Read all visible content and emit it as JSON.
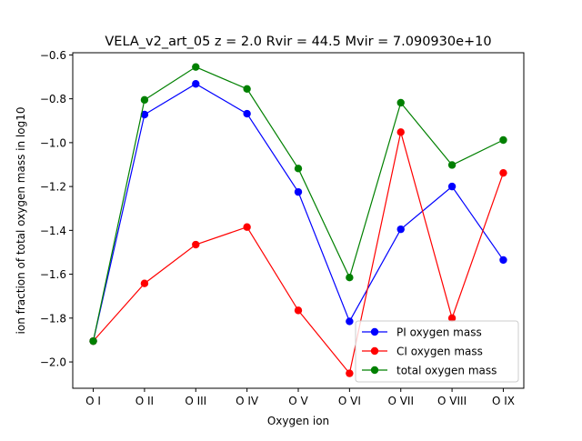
{
  "chart_data": {
    "type": "line",
    "title": "VELA_v2_art_05 z = 2.0 Rvir = 44.5 Mvir = 7.090930e+10",
    "xlabel": "Oxygen ion",
    "ylabel": "ion fraction of total oxygen mass in log10",
    "categories": [
      "O I",
      "O II",
      "O III",
      "O IV",
      "O V",
      "O VI",
      "O VII",
      "O VIII",
      "O IX"
    ],
    "ylim": [
      -2.12,
      -0.59
    ],
    "yticks": [
      -0.6,
      -0.8,
      -1.0,
      -1.2,
      -1.4,
      -1.6,
      -1.8,
      -2.0
    ],
    "ytick_labels": [
      "−0.6",
      "−0.8",
      "−1.0",
      "−1.2",
      "−1.4",
      "−1.6",
      "−1.8",
      "−2.0"
    ],
    "grid": false,
    "legend_position": "lower-right",
    "series": [
      {
        "name": "PI oxygen mass",
        "color": "#0000ff",
        "values": [
          -1.905,
          -0.872,
          -0.732,
          -0.868,
          -1.225,
          -1.815,
          -1.395,
          -1.2,
          -1.535
        ]
      },
      {
        "name": "CI oxygen mass",
        "color": "#ff0000",
        "values": [
          -1.905,
          -1.642,
          -1.465,
          -1.385,
          -1.765,
          -2.052,
          -0.952,
          -1.8,
          -1.138
        ]
      },
      {
        "name": "total oxygen mass",
        "color": "#008000",
        "values": [
          -1.905,
          -0.805,
          -0.655,
          -0.755,
          -1.118,
          -1.615,
          -0.818,
          -1.102,
          -0.988
        ]
      }
    ]
  }
}
